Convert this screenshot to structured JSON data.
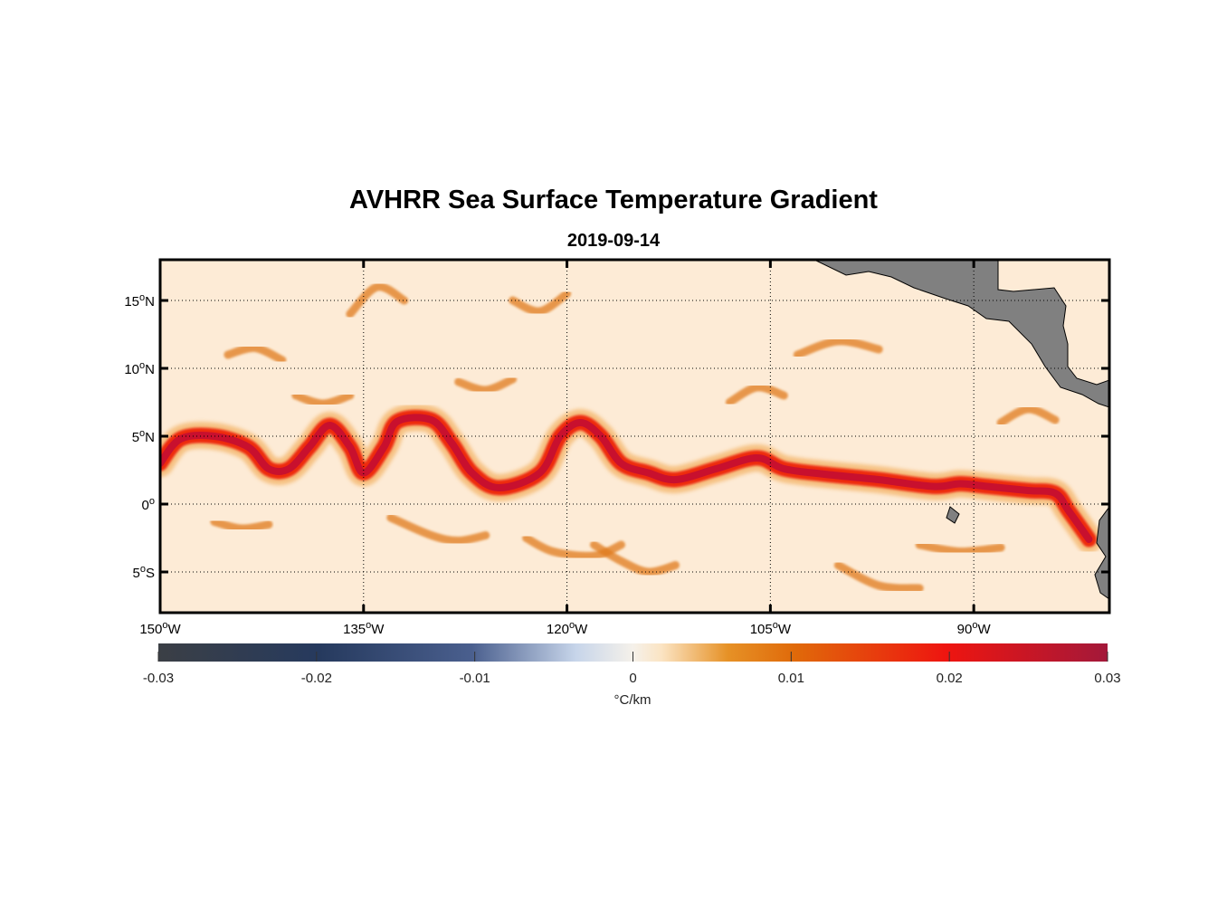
{
  "title": "AVHRR Sea Surface Temperature Gradient",
  "subtitle": "2019-09-14",
  "map": {
    "lon_range": [
      -150,
      -80
    ],
    "lat_range": [
      -8,
      18
    ],
    "grid": "dotted",
    "lon_ticks": [
      {
        "value": -150,
        "num": "150",
        "hem": "W"
      },
      {
        "value": -135,
        "num": "135",
        "hem": "W"
      },
      {
        "value": -120,
        "num": "120",
        "hem": "W"
      },
      {
        "value": -105,
        "num": "105",
        "hem": "W"
      },
      {
        "value": -90,
        "num": "90",
        "hem": "W"
      }
    ],
    "lat_ticks": [
      {
        "value": 15,
        "num": "15",
        "hem": "N"
      },
      {
        "value": 10,
        "num": "10",
        "hem": "N"
      },
      {
        "value": 5,
        "num": "5",
        "hem": "N"
      },
      {
        "value": 0,
        "num": "0",
        "hem": ""
      },
      {
        "value": -5,
        "num": "5",
        "hem": "S"
      }
    ],
    "degree_symbol": "o",
    "land_color": "#808080",
    "ocean_background": "#fdebd6",
    "front": {
      "description_color": "#c8102e",
      "path_lonlat": [
        [
          -150,
          3
        ],
        [
          -148.5,
          4.8
        ],
        [
          -146,
          5
        ],
        [
          -143.5,
          4.2
        ],
        [
          -142,
          2.6
        ],
        [
          -140.5,
          2.6
        ],
        [
          -139,
          4.2
        ],
        [
          -137.5,
          5.8
        ],
        [
          -136,
          4.2
        ],
        [
          -135,
          2.3
        ],
        [
          -133.5,
          4.2
        ],
        [
          -132.5,
          6.1
        ],
        [
          -130,
          6.2
        ],
        [
          -128.5,
          4.5
        ],
        [
          -127,
          2.3
        ],
        [
          -125,
          1.2
        ],
        [
          -122,
          2.3
        ],
        [
          -120.5,
          5
        ],
        [
          -119,
          6
        ],
        [
          -117.5,
          5
        ],
        [
          -116,
          3
        ],
        [
          -114,
          2.3
        ],
        [
          -112,
          1.8
        ],
        [
          -109,
          2.6
        ],
        [
          -106,
          3.4
        ],
        [
          -104,
          2.6
        ],
        [
          -101,
          2.2
        ],
        [
          -97,
          1.8
        ],
        [
          -93,
          1.3
        ],
        [
          -91,
          1.5
        ],
        [
          -89,
          1.3
        ],
        [
          -86,
          1
        ],
        [
          -84,
          0.8
        ],
        [
          -83,
          -0.5
        ],
        [
          -81.5,
          -2.6
        ]
      ]
    },
    "secondary_fronts": [
      [
        [
          -146,
          -1.3
        ],
        [
          -144,
          -1.8
        ],
        [
          -142,
          -1.5
        ]
      ],
      [
        [
          -133,
          -1
        ],
        [
          -130,
          -2.3
        ],
        [
          -128,
          -2.7
        ],
        [
          -126,
          -2.3
        ]
      ],
      [
        [
          -123,
          -2.5
        ],
        [
          -121,
          -3.5
        ],
        [
          -118,
          -3.8
        ],
        [
          -116,
          -3
        ]
      ],
      [
        [
          -118,
          -3
        ],
        [
          -116,
          -4.2
        ],
        [
          -114,
          -5
        ],
        [
          -112,
          -4.5
        ]
      ],
      [
        [
          -100,
          -4.5
        ],
        [
          -97,
          -6
        ],
        [
          -94,
          -6.2
        ]
      ],
      [
        [
          -94,
          -3
        ],
        [
          -91,
          -3.5
        ],
        [
          -88,
          -3.2
        ]
      ],
      [
        [
          -145,
          11
        ],
        [
          -143,
          11.5
        ],
        [
          -141,
          10.6
        ]
      ],
      [
        [
          -124,
          15
        ],
        [
          -122,
          14.2
        ],
        [
          -120,
          15.5
        ]
      ],
      [
        [
          -136,
          14
        ],
        [
          -134,
          16
        ],
        [
          -132,
          15
        ]
      ],
      [
        [
          -103,
          11
        ],
        [
          -100,
          12
        ],
        [
          -97,
          11.4
        ]
      ],
      [
        [
          -88,
          6
        ],
        [
          -86,
          7
        ],
        [
          -84,
          6.2
        ]
      ],
      [
        [
          -108,
          7.5
        ],
        [
          -106,
          8.6
        ],
        [
          -104,
          8
        ]
      ],
      [
        [
          -140,
          8
        ],
        [
          -138,
          7.4
        ],
        [
          -136,
          8
        ]
      ],
      [
        [
          -128,
          9
        ],
        [
          -126,
          8.4
        ],
        [
          -124,
          9.2
        ]
      ]
    ]
  },
  "colorbar": {
    "range": [
      -0.03,
      0.03
    ],
    "ticks": [
      "-0.03",
      "-0.02",
      "-0.01",
      "0",
      "0.01",
      "0.02",
      "0.03"
    ],
    "unit_label": "°C/km",
    "stops": [
      {
        "offset": 0.0,
        "color": "#3b3f45"
      },
      {
        "offset": 0.17,
        "color": "#263a5e"
      },
      {
        "offset": 0.33,
        "color": "#4a5f8e"
      },
      {
        "offset": 0.44,
        "color": "#c7d5ea"
      },
      {
        "offset": 0.5,
        "color": "#f5f1ea"
      },
      {
        "offset": 0.53,
        "color": "#fbe4c3"
      },
      {
        "offset": 0.6,
        "color": "#e69126"
      },
      {
        "offset": 0.67,
        "color": "#e06a0a"
      },
      {
        "offset": 0.83,
        "color": "#ee1510"
      },
      {
        "offset": 1.0,
        "color": "#a3183a"
      }
    ]
  }
}
